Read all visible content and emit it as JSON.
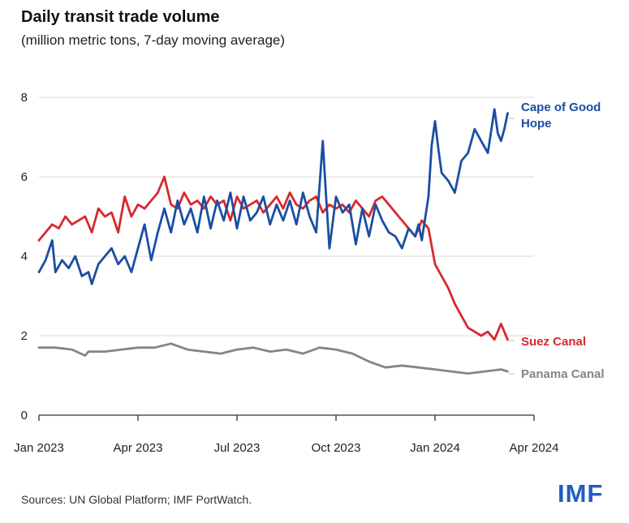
{
  "title": "Daily transit trade volume",
  "subtitle": "(million metric tons, 7-day moving average)",
  "source": "Sources: UN Global Platform; IMF PortWatch.",
  "logo_text": "IMF",
  "chart_data": {
    "type": "line",
    "x_ticks": [
      "Jan 2023",
      "Apr 2023",
      "Jul 2023",
      "Oct 2023",
      "Jan 2024",
      "Apr 2024"
    ],
    "y_ticks": [
      "0",
      "2",
      "4",
      "6",
      "8"
    ],
    "ylim": [
      0,
      8
    ],
    "xlim_months": [
      0,
      15
    ],
    "grid": "horizontal",
    "legend": "direct labels at right end of lines",
    "series": [
      {
        "name": "Cape of Good Hope",
        "label_lines": [
          "Cape of Good",
          "Hope"
        ],
        "color": "#1b4ea2",
        "x": [
          0,
          0.2,
          0.4,
          0.5,
          0.7,
          0.9,
          1.1,
          1.3,
          1.5,
          1.6,
          1.8,
          2.0,
          2.2,
          2.4,
          2.6,
          2.8,
          3.0,
          3.2,
          3.4,
          3.6,
          3.8,
          4.0,
          4.2,
          4.4,
          4.6,
          4.8,
          5.0,
          5.2,
          5.4,
          5.6,
          5.8,
          6.0,
          6.2,
          6.4,
          6.6,
          6.8,
          7.0,
          7.2,
          7.4,
          7.6,
          7.8,
          8.0,
          8.2,
          8.4,
          8.6,
          8.7,
          8.8,
          9.0,
          9.2,
          9.4,
          9.6,
          9.8,
          10.0,
          10.2,
          10.4,
          10.6,
          10.8,
          11.0,
          11.2,
          11.4,
          11.5,
          11.6,
          11.8,
          11.9,
          12.0,
          12.1,
          12.2,
          12.4,
          12.6,
          12.8,
          13.0,
          13.2,
          13.4,
          13.6,
          13.8,
          13.9,
          14.0,
          14.1,
          14.2
        ],
        "values": [
          3.6,
          3.9,
          4.4,
          3.6,
          3.9,
          3.7,
          4.0,
          3.5,
          3.6,
          3.3,
          3.8,
          4.0,
          4.2,
          3.8,
          4.0,
          3.6,
          4.2,
          4.8,
          3.9,
          4.6,
          5.2,
          4.6,
          5.4,
          4.8,
          5.2,
          4.6,
          5.5,
          4.7,
          5.4,
          4.9,
          5.6,
          4.7,
          5.5,
          4.9,
          5.1,
          5.5,
          4.8,
          5.3,
          4.9,
          5.4,
          4.8,
          5.6,
          5.0,
          4.6,
          6.9,
          5.5,
          4.2,
          5.5,
          5.1,
          5.3,
          4.3,
          5.2,
          4.5,
          5.3,
          4.9,
          4.6,
          4.5,
          4.2,
          4.7,
          4.5,
          4.8,
          4.4,
          5.5,
          6.8,
          7.4,
          6.7,
          6.1,
          5.9,
          5.6,
          6.4,
          6.6,
          7.2,
          6.9,
          6.6,
          7.7,
          7.1,
          6.9,
          7.2,
          7.6
        ]
      },
      {
        "name": "Suez Canal",
        "label_lines": [
          "Suez Canal"
        ],
        "color": "#d7282f",
        "x": [
          0,
          0.2,
          0.4,
          0.6,
          0.8,
          1.0,
          1.2,
          1.4,
          1.6,
          1.8,
          2.0,
          2.2,
          2.4,
          2.6,
          2.8,
          3.0,
          3.2,
          3.4,
          3.6,
          3.8,
          4.0,
          4.2,
          4.4,
          4.6,
          4.8,
          5.0,
          5.2,
          5.4,
          5.6,
          5.8,
          6.0,
          6.2,
          6.4,
          6.6,
          6.8,
          7.0,
          7.2,
          7.4,
          7.6,
          7.8,
          8.0,
          8.2,
          8.4,
          8.6,
          8.8,
          9.0,
          9.2,
          9.4,
          9.6,
          9.8,
          10.0,
          10.2,
          10.4,
          10.6,
          10.8,
          11.0,
          11.2,
          11.4,
          11.6,
          11.8,
          12.0,
          12.2,
          12.4,
          12.6,
          12.8,
          13.0,
          13.2,
          13.4,
          13.6,
          13.8,
          14.0,
          14.2
        ],
        "values": [
          4.4,
          4.6,
          4.8,
          4.7,
          5.0,
          4.8,
          4.9,
          5.0,
          4.6,
          5.2,
          5.0,
          5.1,
          4.6,
          5.5,
          5.0,
          5.3,
          5.2,
          5.4,
          5.6,
          6.0,
          5.3,
          5.2,
          5.6,
          5.3,
          5.4,
          5.2,
          5.5,
          5.3,
          5.4,
          4.9,
          5.5,
          5.2,
          5.3,
          5.4,
          5.1,
          5.3,
          5.5,
          5.2,
          5.6,
          5.3,
          5.2,
          5.4,
          5.5,
          5.1,
          5.3,
          5.2,
          5.3,
          5.1,
          5.4,
          5.2,
          5.0,
          5.4,
          5.5,
          5.3,
          5.1,
          4.9,
          4.7,
          4.5,
          4.9,
          4.7,
          3.8,
          3.5,
          3.2,
          2.8,
          2.5,
          2.2,
          2.1,
          2.0,
          2.1,
          1.9,
          2.3,
          1.9
        ]
      },
      {
        "name": "Panama Canal",
        "label_lines": [
          "Panama Canal"
        ],
        "color": "#858585",
        "x": [
          0,
          0.5,
          1.0,
          1.4,
          1.5,
          2.0,
          2.5,
          3.0,
          3.5,
          4.0,
          4.5,
          5.0,
          5.5,
          6.0,
          6.5,
          7.0,
          7.5,
          8.0,
          8.5,
          9.0,
          9.5,
          10.0,
          10.5,
          11.0,
          11.5,
          12.0,
          12.5,
          13.0,
          13.5,
          14.0,
          14.2
        ],
        "values": [
          1.7,
          1.7,
          1.65,
          1.5,
          1.6,
          1.6,
          1.65,
          1.7,
          1.7,
          1.8,
          1.65,
          1.6,
          1.55,
          1.65,
          1.7,
          1.6,
          1.65,
          1.55,
          1.7,
          1.65,
          1.55,
          1.35,
          1.2,
          1.25,
          1.2,
          1.15,
          1.1,
          1.05,
          1.1,
          1.15,
          1.1
        ]
      }
    ]
  }
}
